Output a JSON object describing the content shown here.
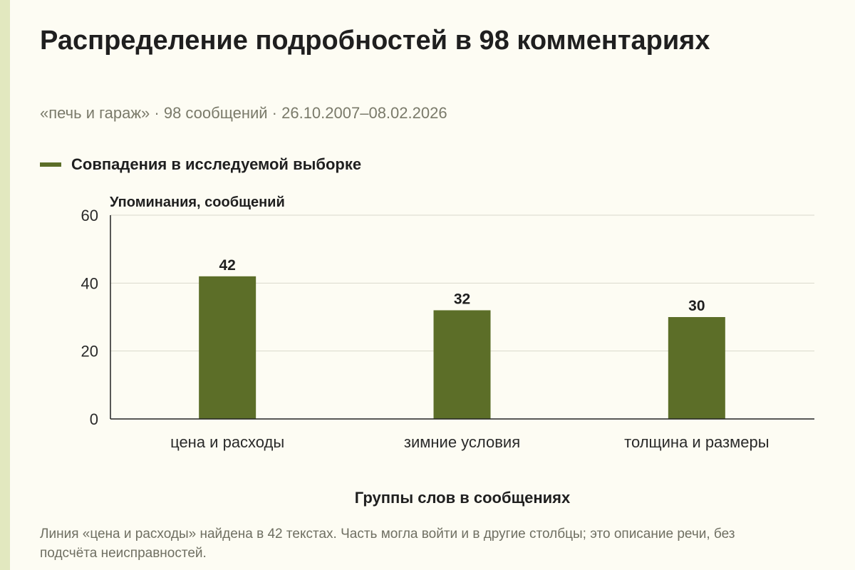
{
  "header": {
    "title": "Распределение подробностей в 98 комментариях",
    "subtitle": "«печь и гараж» · 98 сообщений · 26.10.2007–08.02.2026"
  },
  "colors": {
    "bar": "#5c6e28",
    "grid": "#d9d9cc",
    "axis": "#222222"
  },
  "chart_data": {
    "type": "bar",
    "categories": [
      "цена и расходы",
      "зимние условия",
      "толщина и размеры"
    ],
    "series": [
      {
        "name": "Совпадения в исследуемой выборке",
        "values": [
          42,
          32,
          30
        ]
      }
    ],
    "ylabel": "Упоминания, сообщений",
    "xlabel": "Группы слов в сообщениях",
    "ylim": [
      0,
      60
    ],
    "yticks": [
      0,
      20,
      40,
      60
    ],
    "grid": true,
    "legend_position": "top-left"
  },
  "note": "Линия «цена и расходы» найдена в 42 текстах. Часть могла войти и в другие столбцы; это описание речи, без подсчёта неисправностей."
}
